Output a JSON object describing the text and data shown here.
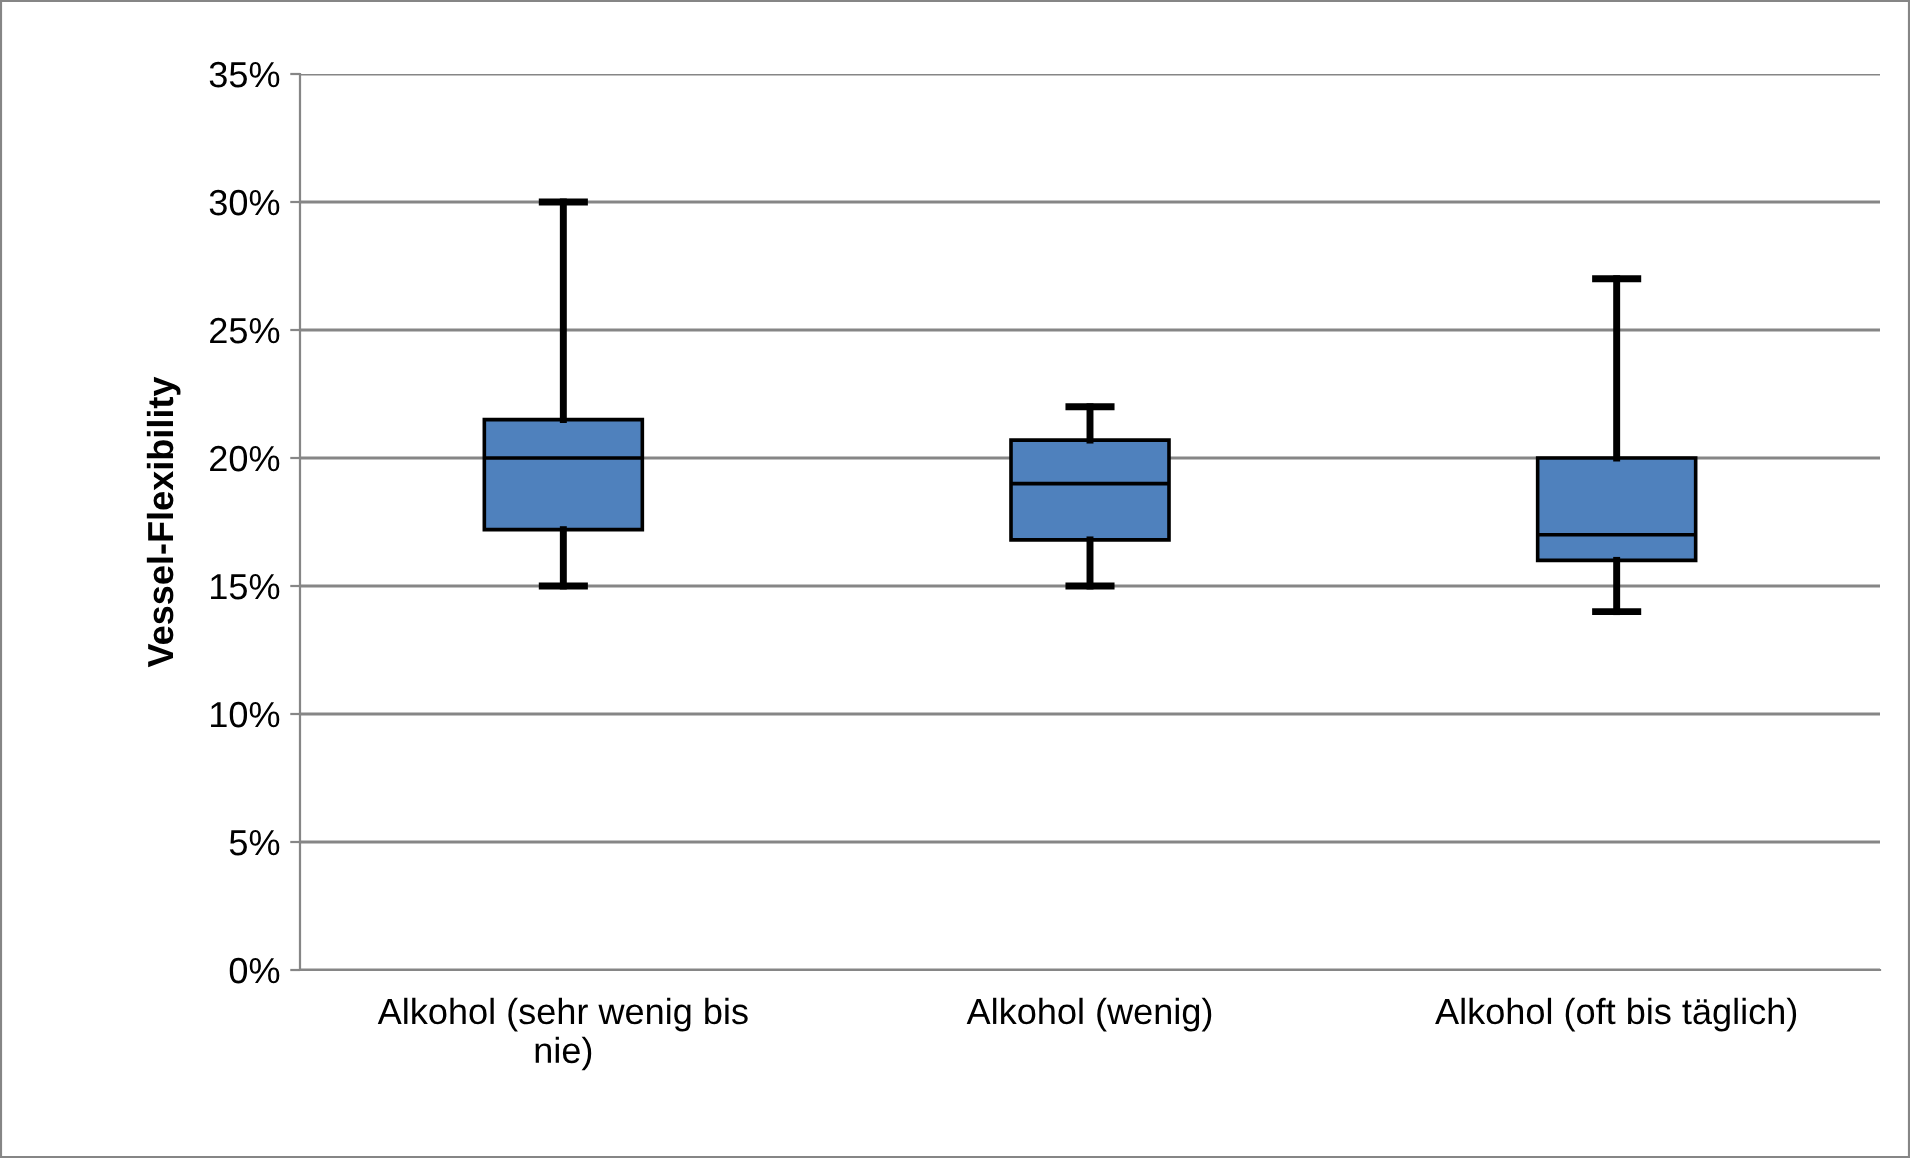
{
  "chart_data": {
    "type": "box",
    "ylabel": "Vessel-Flexibility",
    "categories": [
      "Alkohol (sehr wenig bis nie)",
      "Alkohol (wenig)",
      "Alkohol (oft bis täglich)"
    ],
    "color": "#4f81bd",
    "boxes": [
      {
        "low": 15,
        "q1": 17.2,
        "median": 20,
        "q3": 21.5,
        "high": 30
      },
      {
        "low": 15,
        "q1": 16.8,
        "median": 19,
        "q3": 20.7,
        "high": 22
      },
      {
        "low": 14,
        "q1": 16,
        "median": 17,
        "q3": 20,
        "high": 27
      }
    ],
    "ylim": [
      0,
      35
    ],
    "yticks": [
      {
        "value": 0,
        "label": "0%"
      },
      {
        "value": 5,
        "label": "5%"
      },
      {
        "value": 10,
        "label": "10%"
      },
      {
        "value": 15,
        "label": "15%"
      },
      {
        "value": 20,
        "label": "20%"
      },
      {
        "value": 25,
        "label": "25%"
      },
      {
        "value": 30,
        "label": "30%"
      },
      {
        "value": 35,
        "label": "35%"
      }
    ],
    "grid": "y"
  }
}
